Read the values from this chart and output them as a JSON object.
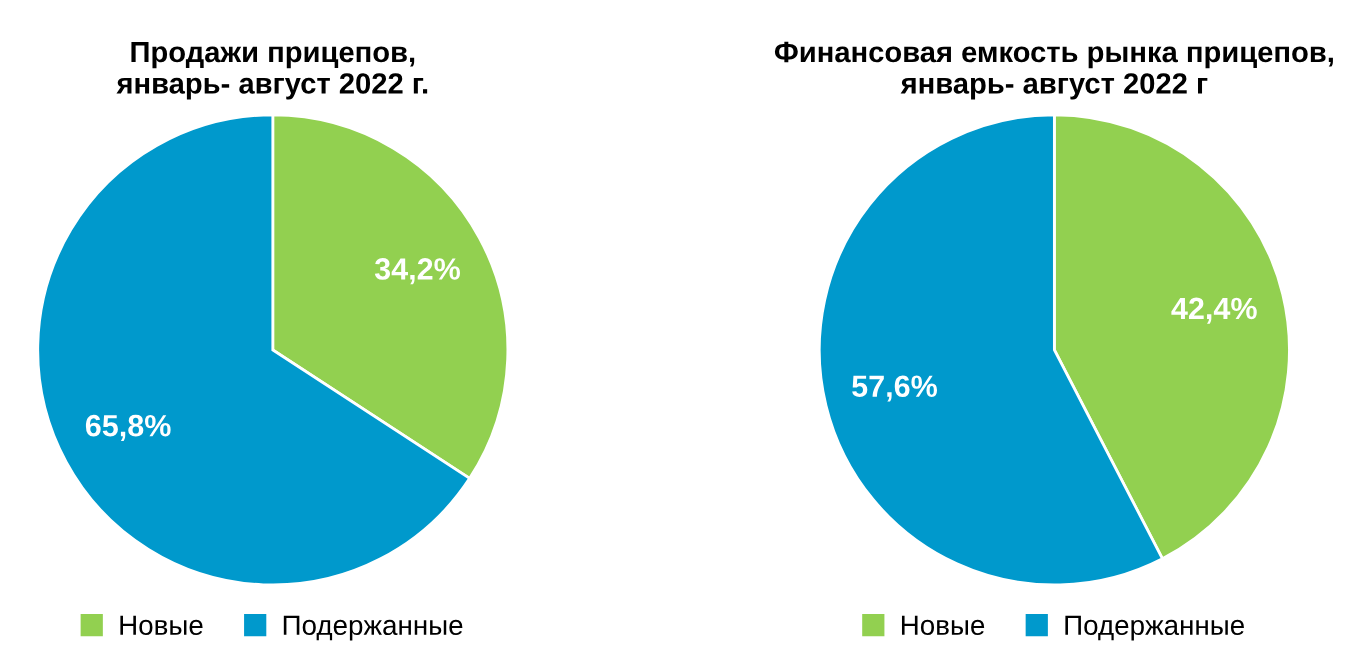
{
  "chart_data": [
    {
      "type": "pie",
      "title": "Продажи прицепов,\nянварь- август 2022 г.",
      "categories": [
        "Новые",
        "Подержанные"
      ],
      "values": [
        34.2,
        65.8
      ],
      "colors": [
        "#92d050",
        "#0099cc"
      ],
      "value_labels": [
        "34,2%",
        "65,8%"
      ],
      "legend": "bottom"
    },
    {
      "type": "pie",
      "title": "Финансовая емкость рынка прицепов,\nянварь- август 2022 г",
      "categories": [
        "Новые",
        "Подержанные"
      ],
      "values": [
        42.4,
        57.6
      ],
      "colors": [
        "#92d050",
        "#0099cc"
      ],
      "value_labels": [
        "42,4%",
        "57,6%"
      ],
      "legend": "bottom"
    }
  ]
}
